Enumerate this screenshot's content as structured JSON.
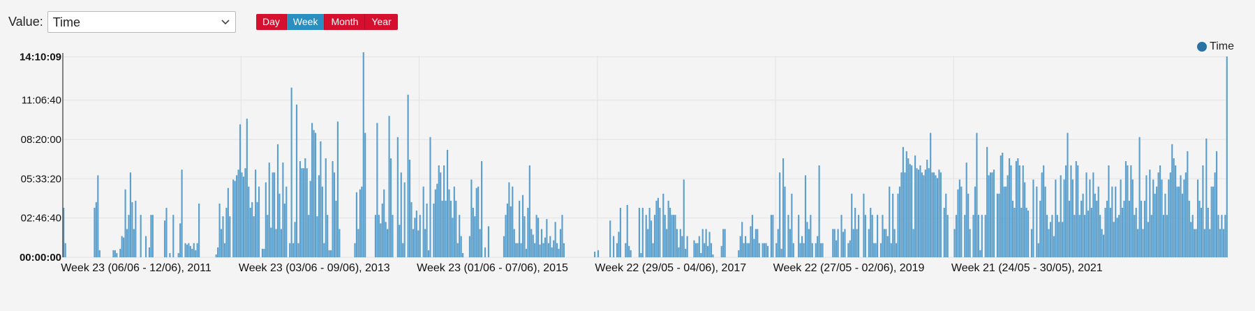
{
  "controls": {
    "value_label": "Value:",
    "select_value": "Time",
    "period_buttons": [
      {
        "label": "Day",
        "active": false
      },
      {
        "label": "Week",
        "active": true
      },
      {
        "label": "Month",
        "active": false
      },
      {
        "label": "Year",
        "active": false
      }
    ]
  },
  "colors": {
    "bar": "#5b9fcc",
    "legend_dot": "#2872a6",
    "button": "#d5102f",
    "button_active": "#2a8ec0",
    "grid": "#e2e2e2"
  },
  "chart_data": {
    "type": "bar",
    "legend": [
      {
        "name": "Time",
        "position": "top-right"
      }
    ],
    "series": [
      {
        "name": "Time",
        "values": [
          3.5,
          1.0,
          0,
          0,
          0,
          0,
          0,
          0,
          0,
          0,
          0,
          0,
          0,
          0,
          0,
          0,
          0,
          0,
          3.5,
          3.9,
          5.8,
          0.5,
          0,
          0,
          0,
          0,
          0,
          0,
          0,
          0.5,
          0.5,
          0.3,
          0,
          0.6,
          1.5,
          1.4,
          4.8,
          2.0,
          3.0,
          6.0,
          3.9,
          2.0,
          4.0,
          0,
          0,
          3.0,
          0,
          0,
          1.5,
          0,
          0.7,
          3.0,
          3.0,
          0,
          0,
          0,
          0,
          0,
          0,
          2.6,
          3.5,
          0,
          0.3,
          0,
          3.0,
          0,
          0,
          0.3,
          2.4,
          6.2,
          0,
          1.0,
          0.9,
          1.0,
          0.8,
          0.6,
          1.0,
          0.5,
          1.0,
          3.8,
          0,
          0,
          0,
          0,
          0,
          0,
          0,
          0,
          0,
          0.2,
          0.7,
          3.8,
          2.0,
          2.9,
          1.0,
          3.5,
          4.9,
          2.9,
          0,
          5.5,
          5.4,
          5.8,
          6.2,
          9.4,
          6.0,
          5.7,
          6.3,
          9.8,
          5.0,
          3.5,
          3.9,
          2.9,
          6.2,
          3.9,
          5.0,
          0,
          0.6,
          0.6,
          5.3,
          3.0,
          6.7,
          2.1,
          6.0,
          6.0,
          2.0,
          8.0,
          4.5,
          2.0,
          6.7,
          3.8,
          5.0,
          0,
          1.0,
          12.0,
          1.0,
          2.5,
          10.8,
          1.0,
          6.8,
          6.3,
          6.3,
          7.0,
          6.3,
          3.0,
          5.4,
          9.5,
          9.0,
          8.8,
          2.9,
          5.8,
          8.2,
          5.0,
          1.0,
          7.0,
          3.0,
          0.5,
          0.5,
          6.8,
          6.0,
          4.0,
          9.6,
          2.0,
          0,
          0,
          0,
          0,
          0,
          0,
          0,
          0,
          1.0,
          4.6,
          2.0,
          4.8,
          5.0,
          14.5,
          8.8,
          0,
          0,
          0,
          0,
          0,
          3.0,
          9.5,
          3.0,
          2.4,
          3.8,
          4.8,
          2.5,
          2.0,
          10.0,
          7.0,
          3.0,
          0,
          0,
          8.5,
          2.3,
          6.0,
          1.0,
          5.3,
          0,
          11.5,
          6.9,
          3.9,
          2.0,
          2.8,
          3.3,
          1.9,
          3.0,
          0,
          5.0,
          2.0,
          3.8,
          0.5,
          8.5,
          0,
          3.8,
          4.8,
          5.2,
          6.5,
          6.0,
          4.0,
          6.5,
          4.0,
          7.6,
          4.8,
          4.0,
          2.8,
          5.0,
          4.0,
          1.0,
          3.0,
          1.5,
          0.3,
          0,
          0,
          0,
          1.5,
          5.5,
          3.5,
          2.9,
          4.9,
          5.0,
          2.0,
          6.8,
          0,
          0.7,
          0,
          2.2,
          0,
          0,
          0,
          0,
          0,
          0,
          0,
          0,
          1.5,
          3.0,
          3.8,
          5.3,
          3.6,
          5.0,
          2.0,
          1.0,
          1.0,
          4.0,
          1.0,
          4.4,
          2.9,
          0.6,
          3.5,
          6.5,
          2.0,
          1.6,
          1.0,
          3.0,
          2.8,
          0.9,
          2.0,
          1.0,
          1.4,
          2.7,
          1.0,
          1.5,
          0.7,
          1.2,
          2.5,
          1.0,
          0.6,
          2.0,
          3.0,
          1.0,
          0,
          0,
          0,
          0,
          0,
          0,
          0,
          0,
          0,
          0,
          0,
          0,
          0,
          0,
          0,
          0,
          0,
          0.4,
          0,
          0.5,
          0,
          0,
          0,
          0,
          0,
          0,
          2.6,
          0,
          1.5,
          0,
          1.0,
          1.8,
          3.5,
          0,
          0,
          1.0,
          3.7,
          0.8,
          0.5,
          0,
          0,
          0,
          0,
          3.5,
          0.3,
          3.5,
          0,
          3.0,
          2.0,
          3.5,
          2.6,
          1.0,
          3.0,
          4.0,
          4.2,
          3.5,
          0,
          4.5,
          3.0,
          2.0,
          4.0,
          3.5,
          3.0,
          3.0,
          3.0,
          2.0,
          0.7,
          2.0,
          1.5,
          5.5,
          0.6,
          1.5,
          0,
          0,
          0,
          1.2,
          1.0,
          1.0,
          1.5,
          0.3,
          2.0,
          1.0,
          2.0,
          0.8,
          1.8,
          1.0,
          0.2,
          0,
          0,
          0,
          0,
          0.8,
          2.0,
          2.0,
          0,
          0,
          0,
          0,
          0,
          0,
          0,
          0.5,
          1.5,
          2.5,
          1.0,
          1.5,
          1.0,
          1.0,
          2.2,
          3.0,
          1.3,
          2.0,
          2.0,
          1.0,
          0,
          1.0,
          1.0,
          1.0,
          0.8,
          0,
          3.0,
          3.0,
          0,
          1.0,
          2.0,
          6.0,
          0.6,
          7.0,
          5.0,
          0,
          3.0,
          2.0,
          4.5,
          1.0,
          0,
          0,
          3.0,
          1.0,
          1.5,
          1.0,
          5.8,
          2.5,
          2.0,
          3.0,
          1.0,
          0,
          1.0,
          1.5,
          6.5,
          1.0,
          1.0,
          0,
          0,
          0,
          0,
          0,
          2.0,
          2.0,
          1.2,
          2.0,
          0,
          3.0,
          1.8,
          2.0,
          0,
          1.0,
          1.2,
          4.5,
          2.0,
          3.5,
          2.0,
          3.0,
          0,
          0,
          4.5,
          3.0,
          0,
          2.0,
          3.5,
          3.0,
          1.0,
          1.0,
          3.0,
          0,
          1.0,
          3.0,
          2.0,
          2.0,
          1.5,
          5.0,
          1.0,
          4.5,
          2.0,
          1.0,
          4.5,
          5.0,
          6.0,
          7.8,
          6.0,
          7.5,
          7.0,
          6.6,
          6.5,
          2.0,
          7.2,
          6.3,
          6.2,
          6.5,
          6.0,
          5.8,
          6.2,
          6.9,
          6.3,
          8.8,
          6.0,
          6.0,
          5.8,
          5.6,
          6.2,
          6.0,
          0,
          3.5,
          4.5,
          3.0,
          0,
          0,
          0,
          2.0,
          3.0,
          4.8,
          5.5,
          5.0,
          0,
          3.0,
          6.7,
          4.5,
          2.0,
          0,
          3.0,
          5.0,
          8.8,
          3.0,
          0.5,
          3.0,
          0,
          3.0,
          7.8,
          5.8,
          6.0,
          6.0,
          6.2,
          0,
          4.5,
          4.5,
          7.2,
          7.4,
          5.0,
          5.0,
          5.8,
          7.0,
          6.5,
          4.0,
          3.5,
          6.8,
          7.0,
          6.5,
          3.5,
          6.5,
          5.3,
          3.5,
          3.3,
          0,
          2.0,
          5.5,
          0,
          5.0,
          1.0,
          4.0,
          6.0,
          6.5,
          5.0,
          3.0,
          2.0,
          2.5,
          3.0,
          1.5,
          5.5,
          3.0,
          2.5,
          5.8,
          2.5,
          5.5,
          6.5,
          8.8,
          4.0,
          6.5,
          5.5,
          3.0,
          6.8,
          6.5,
          3.0,
          4.0,
          4.5,
          3.0,
          6.0,
          3.3,
          5.5,
          3.5,
          6.0,
          4.5,
          4.0,
          5.0,
          3.0,
          2.0,
          1.6,
          3.5,
          4.0,
          6.5,
          3.5,
          5.0,
          2.5,
          5.0,
          2.8,
          3.0,
          5.5,
          3.5,
          4.0,
          6.8,
          6.5,
          4.0,
          6.5,
          5.5,
          3.0,
          3.5,
          2.0,
          8.5,
          4.0,
          2.0,
          4.0,
          5.8,
          2.5,
          6.2,
          3.0,
          5.5,
          4.5,
          5.0,
          6.0,
          6.5,
          5.5,
          3.0,
          4.5,
          3.0,
          5.5,
          6.0,
          8.0,
          7.0,
          6.5,
          5.0,
          5.0,
          5.8,
          4.5,
          5.5,
          6.0,
          7.5,
          4.0,
          2.5,
          3.0,
          2.0,
          2.0,
          5.5,
          4.0,
          3.5,
          6.5,
          2.0,
          8.4,
          3.5,
          2.0,
          5.0,
          5.0,
          6.0,
          7.5,
          3.0,
          2.0,
          3.0,
          2.0,
          3.0,
          14.2
        ]
      }
    ],
    "y_unit": "hours",
    "ylim": [
      0,
      14.25
    ],
    "y_ticks": [
      {
        "value": 0,
        "label": "00:00:00"
      },
      {
        "value": 2.7778,
        "label": "02:46:40"
      },
      {
        "value": 5.5556,
        "label": "05:33:20"
      },
      {
        "value": 8.3333,
        "label": "08:20:00"
      },
      {
        "value": 11.1111,
        "label": "11:06:40"
      },
      {
        "value": 14.1692,
        "label": "14:10:09"
      }
    ],
    "x_ticks": [
      {
        "index": 0,
        "label": "Week 23 (06/06 - 12/06), 2011"
      },
      {
        "index": 104,
        "label": "Week 23 (03/06 - 09/06), 2013"
      },
      {
        "index": 208,
        "label": "Week 23 (01/06 - 07/06), 2015"
      },
      {
        "index": 312,
        "label": "Week 22 (29/05 - 04/06), 2017"
      },
      {
        "index": 416,
        "label": "Week 22 (27/05 - 02/06), 2019"
      },
      {
        "index": 520,
        "label": "Week 21 (24/05 - 30/05), 2021"
      }
    ],
    "grid": true
  }
}
